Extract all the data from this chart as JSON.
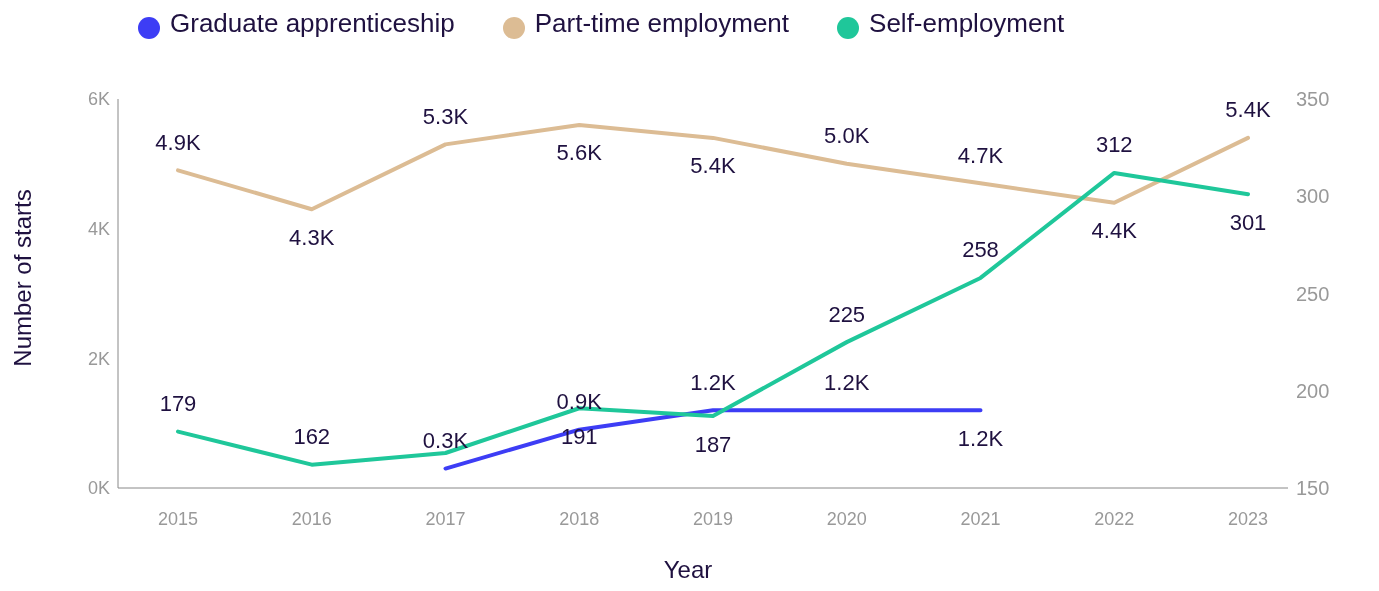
{
  "chart_data": {
    "type": "line",
    "xlabel": "Year",
    "ylabel": "Number of starts",
    "categories": [
      "2015",
      "2016",
      "2017",
      "2018",
      "2019",
      "2020",
      "2021",
      "2022",
      "2023"
    ],
    "series": [
      {
        "name": "Graduate apprenticeship",
        "color": "#3d3df5",
        "values": [
          null,
          null,
          300,
          900,
          1200,
          1200,
          1200,
          null,
          null
        ],
        "value_labels": [
          null,
          null,
          "0.3K",
          "0.9K",
          "1.2K",
          "1.2K",
          "1.2K",
          null,
          null
        ]
      },
      {
        "name": "Part-time employment",
        "color": "#dcbc94",
        "values": [
          4900,
          4300,
          5300,
          5600,
          5400,
          5000,
          4700,
          4400,
          5400
        ],
        "value_labels": [
          "4.9K",
          "4.3K",
          "5.3K",
          "5.6K",
          "5.4K",
          "5.0K",
          "4.7K",
          "4.4K",
          "5.4K"
        ]
      },
      {
        "name": "Self-employment",
        "color": "#1fc79a",
        "axis": "y2",
        "values": [
          179,
          162,
          168,
          191,
          187,
          225,
          258,
          312,
          301
        ],
        "value_labels": [
          "179",
          "162",
          null,
          "191",
          "187",
          "225",
          "258",
          "312",
          "301"
        ]
      }
    ],
    "ylim": [
      0,
      6000
    ],
    "yticks": [
      {
        "value": 0,
        "label": "0K"
      },
      {
        "value": 2000,
        "label": "2K"
      },
      {
        "value": 4000,
        "label": "4K"
      },
      {
        "value": 6000,
        "label": "6K"
      }
    ],
    "y2lim": [
      150,
      350
    ],
    "y2ticks": [
      150,
      200,
      250,
      300,
      350
    ],
    "grid": false,
    "legend": "top left",
    "marker": "none",
    "line_style": "solid"
  }
}
